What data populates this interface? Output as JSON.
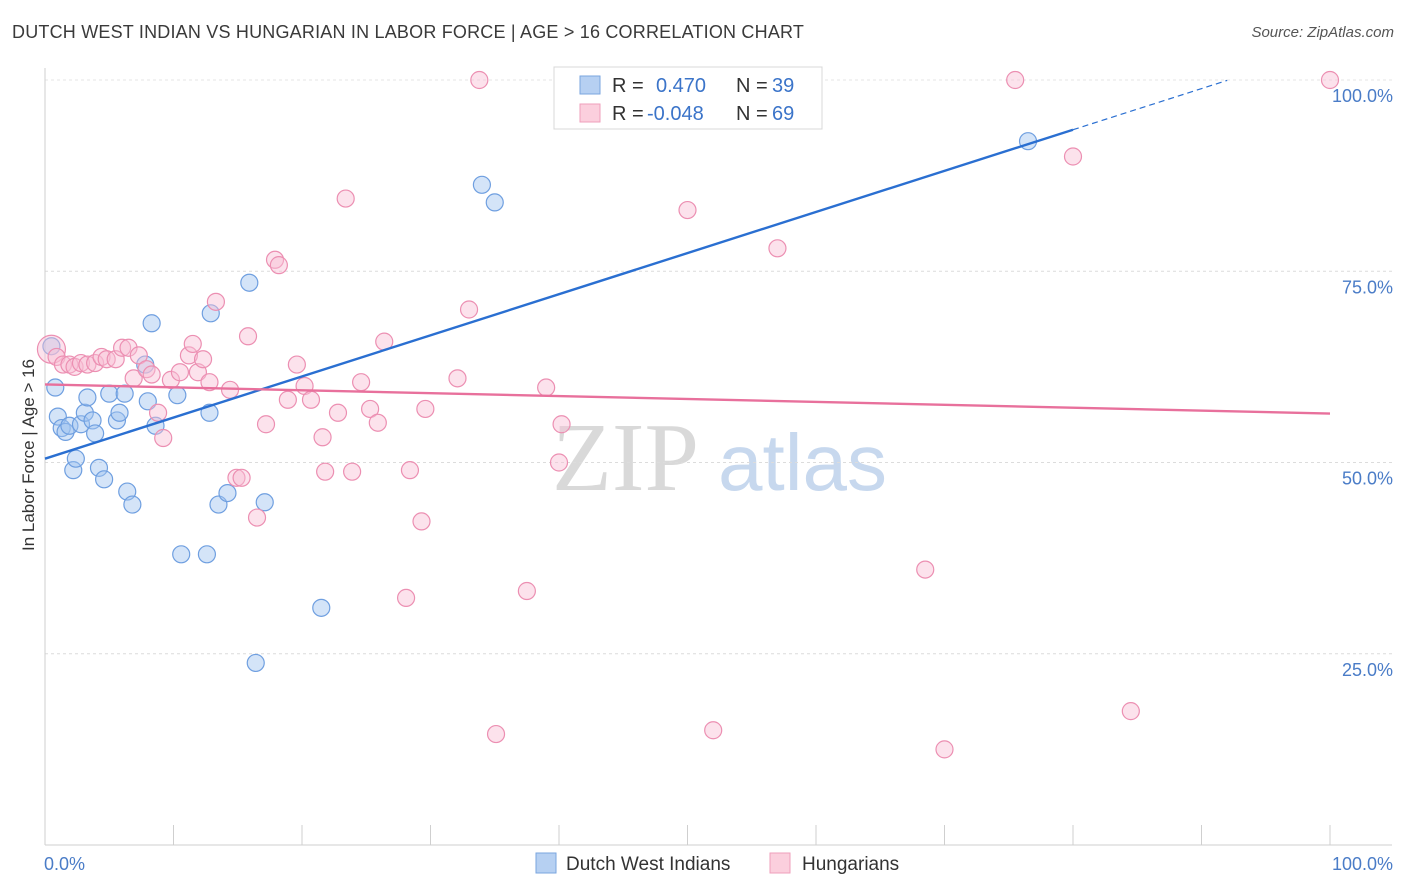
{
  "title": "DUTCH WEST INDIAN VS HUNGARIAN IN LABOR FORCE | AGE > 16 CORRELATION CHART",
  "source": "Source: ZipAtlas.com",
  "watermark": {
    "zip": "ZIP",
    "atlas": "atlas"
  },
  "chart_data": {
    "type": "scatter",
    "title": "DUTCH WEST INDIAN VS HUNGARIAN IN LABOR FORCE | AGE > 16 CORRELATION CHART",
    "xlabel": "",
    "ylabel": "In Labor Force | Age > 16",
    "xlim": [
      0,
      100
    ],
    "ylim": [
      0,
      104
    ],
    "x_tick_labels": [
      "0.0%",
      "100.0%"
    ],
    "y_ticks": [
      25,
      50,
      75,
      100
    ],
    "y_tick_labels": [
      "25.0%",
      "50.0%",
      "75.0%",
      "100.0%"
    ],
    "grid": true,
    "legend": {
      "position": "top-center",
      "entries": [
        {
          "r_label": "R =",
          "r_value": "0.470",
          "n_label": "N =",
          "n_value": "39"
        },
        {
          "r_label": "R =",
          "r_value": "-0.048",
          "n_label": "N =",
          "n_value": "69"
        }
      ]
    },
    "series": [
      {
        "name": "Dutch West Indians",
        "color": "#8fb8ec",
        "line_color": "#2a6fd1",
        "trend": {
          "x0": 0,
          "y0": 50.5,
          "x1": 80,
          "y1": 93.5,
          "dash_to_x": 92
        },
        "points": [
          [
            0.5,
            65.2
          ],
          [
            0.8,
            59.8
          ],
          [
            1.0,
            56.0
          ],
          [
            1.3,
            54.5
          ],
          [
            1.6,
            54.0
          ],
          [
            1.9,
            54.8
          ],
          [
            2.2,
            49.0
          ],
          [
            2.4,
            50.5
          ],
          [
            2.8,
            55.0
          ],
          [
            3.1,
            56.5
          ],
          [
            3.3,
            58.5
          ],
          [
            3.7,
            55.5
          ],
          [
            3.9,
            53.8
          ],
          [
            4.2,
            49.3
          ],
          [
            4.6,
            47.8
          ],
          [
            5.0,
            59.0
          ],
          [
            5.6,
            55.5
          ],
          [
            5.8,
            56.5
          ],
          [
            6.2,
            59.0
          ],
          [
            6.4,
            46.2
          ],
          [
            6.8,
            44.5
          ],
          [
            7.8,
            62.8
          ],
          [
            8.0,
            58.0
          ],
          [
            8.3,
            68.2
          ],
          [
            8.6,
            54.8
          ],
          [
            10.3,
            58.8
          ],
          [
            10.6,
            38.0
          ],
          [
            12.6,
            38.0
          ],
          [
            12.8,
            56.5
          ],
          [
            12.9,
            69.5
          ],
          [
            13.5,
            44.5
          ],
          [
            14.2,
            46.0
          ],
          [
            15.9,
            73.5
          ],
          [
            16.4,
            23.8
          ],
          [
            17.1,
            44.8
          ],
          [
            21.5,
            31.0
          ],
          [
            34.0,
            86.3
          ],
          [
            35.0,
            84.0
          ],
          [
            76.5,
            92.0
          ]
        ]
      },
      {
        "name": "Hungarians",
        "color": "#f4a9c2",
        "line_color": "#e8709c",
        "trend": {
          "x0": 0,
          "y0": 60.2,
          "x1": 100,
          "y1": 56.4
        },
        "points": [
          [
            0.5,
            64.8
          ],
          [
            0.9,
            63.8
          ],
          [
            1.4,
            62.8
          ],
          [
            1.9,
            62.8
          ],
          [
            2.3,
            62.5
          ],
          [
            2.8,
            63.0
          ],
          [
            3.3,
            62.8
          ],
          [
            3.9,
            63.0
          ],
          [
            4.4,
            63.8
          ],
          [
            4.8,
            63.5
          ],
          [
            5.5,
            63.5
          ],
          [
            6.0,
            65.0
          ],
          [
            6.5,
            65.0
          ],
          [
            6.9,
            61.0
          ],
          [
            7.3,
            64.0
          ],
          [
            7.9,
            62.2
          ],
          [
            8.3,
            61.5
          ],
          [
            8.8,
            56.5
          ],
          [
            9.2,
            53.2
          ],
          [
            9.8,
            60.8
          ],
          [
            10.5,
            61.8
          ],
          [
            11.2,
            64.0
          ],
          [
            11.5,
            65.5
          ],
          [
            11.9,
            61.8
          ],
          [
            12.3,
            63.5
          ],
          [
            12.8,
            60.5
          ],
          [
            13.3,
            71.0
          ],
          [
            14.4,
            59.5
          ],
          [
            14.9,
            48.0
          ],
          [
            15.3,
            48.0
          ],
          [
            15.8,
            66.5
          ],
          [
            16.5,
            42.8
          ],
          [
            17.2,
            55.0
          ],
          [
            17.9,
            76.5
          ],
          [
            18.2,
            75.8
          ],
          [
            18.9,
            58.2
          ],
          [
            19.6,
            62.8
          ],
          [
            20.2,
            60.0
          ],
          [
            20.7,
            58.2
          ],
          [
            21.6,
            53.3
          ],
          [
            21.8,
            48.8
          ],
          [
            22.8,
            56.5
          ],
          [
            23.4,
            84.5
          ],
          [
            23.9,
            48.8
          ],
          [
            24.6,
            60.5
          ],
          [
            25.3,
            57.0
          ],
          [
            25.9,
            55.2
          ],
          [
            26.4,
            65.8
          ],
          [
            28.1,
            32.3
          ],
          [
            28.4,
            49.0
          ],
          [
            29.3,
            42.3
          ],
          [
            29.6,
            57.0
          ],
          [
            32.1,
            61.0
          ],
          [
            33.0,
            70.0
          ],
          [
            33.8,
            100.0
          ],
          [
            35.1,
            14.5
          ],
          [
            37.5,
            33.2
          ],
          [
            39.0,
            59.8
          ],
          [
            40.0,
            50.0
          ],
          [
            40.2,
            55.0
          ],
          [
            50.0,
            83.0
          ],
          [
            52.0,
            15.0
          ],
          [
            57.0,
            78.0
          ],
          [
            68.5,
            36.0
          ],
          [
            70.0,
            12.5
          ],
          [
            75.5,
            100.0
          ],
          [
            80.0,
            90.0
          ],
          [
            84.5,
            17.5
          ],
          [
            100.0,
            100.0
          ]
        ]
      }
    ]
  }
}
